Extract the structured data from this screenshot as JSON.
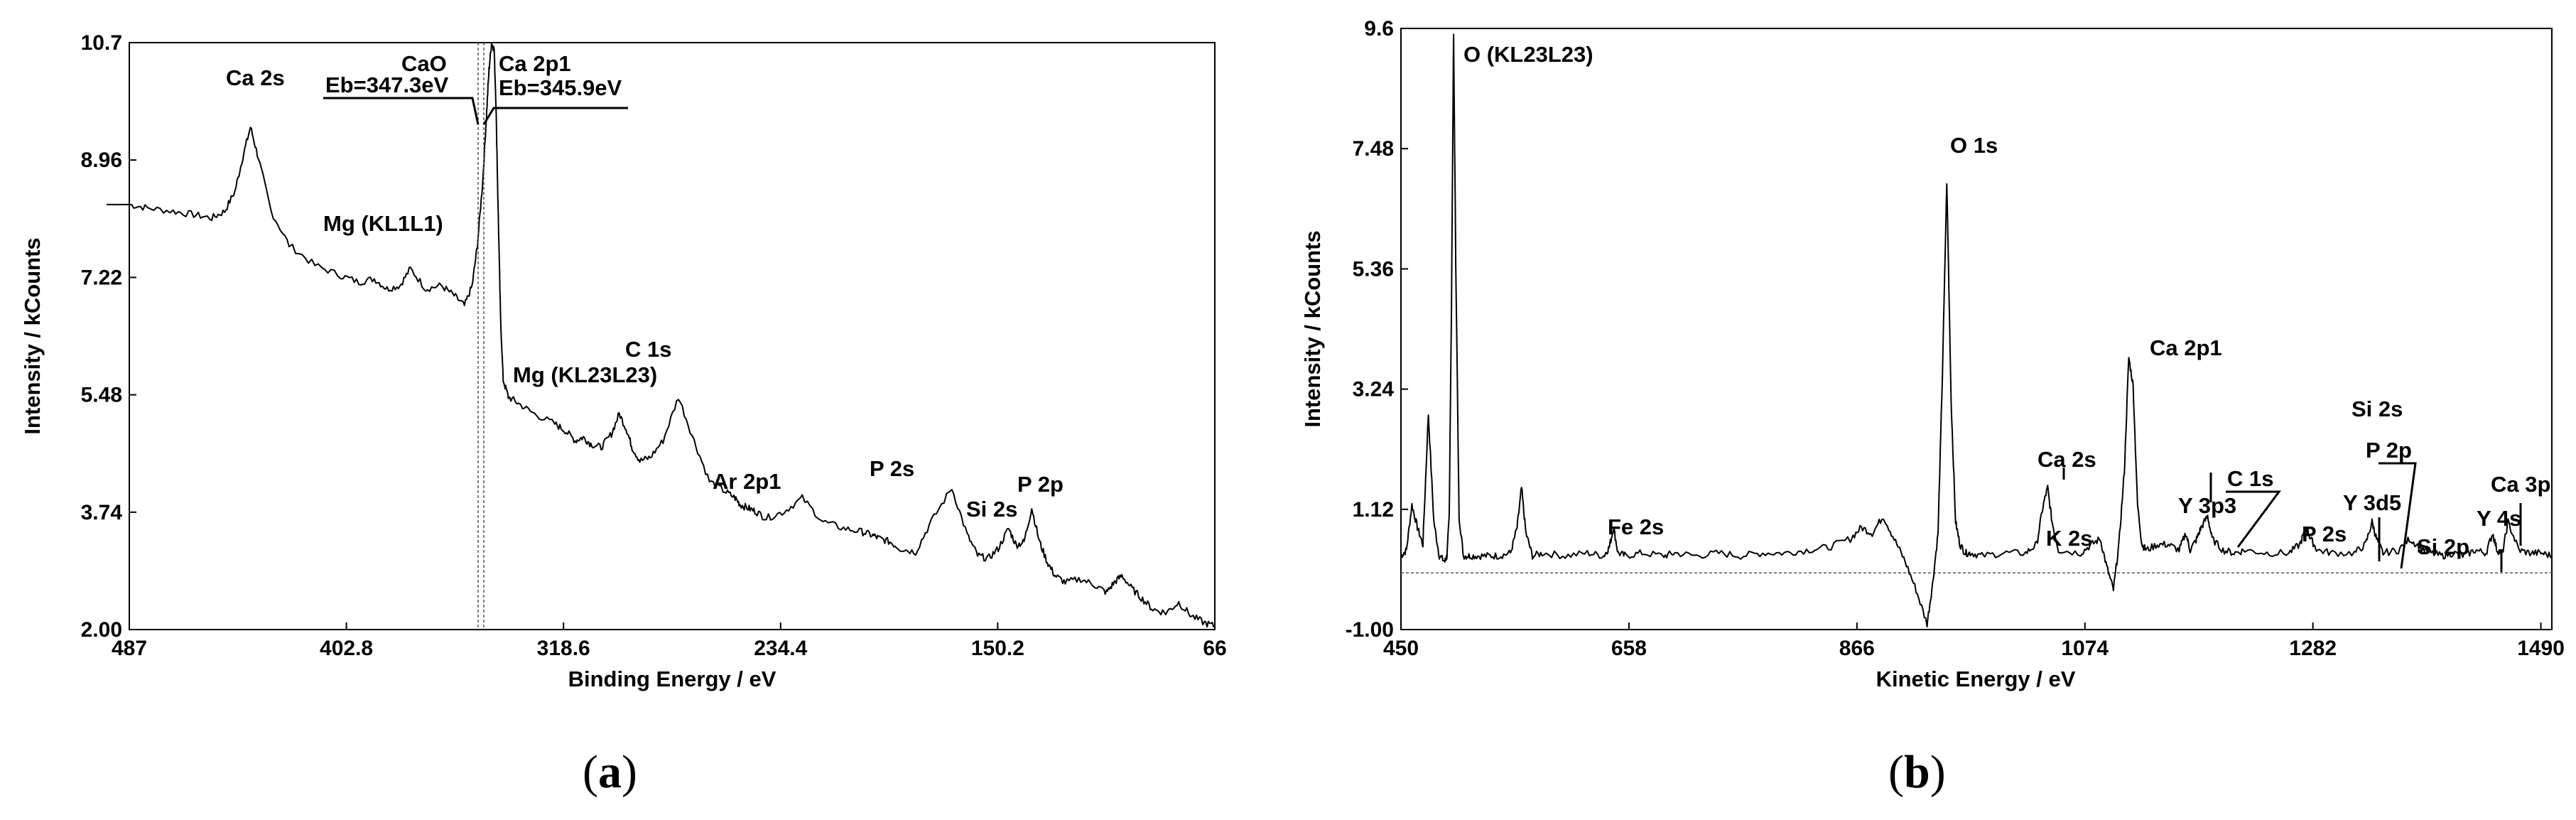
{
  "chart_data": [
    {
      "type": "line",
      "xlabel": "Binding Energy / eV",
      "ylabel": "Intensity / kCounts",
      "x_reversed": true,
      "xlim": [
        487,
        66
      ],
      "ylim": [
        2.0,
        10.7
      ],
      "xticks": [
        "487",
        "402.8",
        "318.6",
        "234.4",
        "150.2",
        "66"
      ],
      "yticks": [
        "2.00",
        "3.74",
        "5.48",
        "7.22",
        "8.96",
        "10.7"
      ],
      "series": [
        {
          "x": [
            487,
            480,
            470,
            462,
            455,
            450,
            446,
            443,
            440,
            437,
            432,
            425,
            415,
            405,
            398,
            392,
            387,
            382,
            378,
            372,
            366,
            361,
            357,
            354,
            352,
            350,
            348.5,
            347.5,
            346.5,
            345.5,
            344.8,
            344,
            343,
            342,
            340,
            336,
            330,
            322,
            318,
            314,
            311,
            308,
            304,
            300,
            297,
            294,
            292,
            289,
            285,
            280,
            274,
            268,
            262,
            256,
            252,
            250,
            247,
            244,
            240,
            233,
            226,
            218,
            210,
            203,
            199,
            196,
            192,
            188,
            182,
            176,
            168,
            162,
            158,
            154,
            150,
            146,
            143,
            140,
            137,
            134,
            131,
            128,
            124,
            118,
            112,
            108,
            105,
            102,
            98,
            94,
            90,
            85,
            80,
            75,
            70,
            66
          ],
          "y": [
            8.3,
            8.25,
            8.2,
            8.15,
            8.1,
            8.2,
            8.5,
            9.0,
            9.45,
            9.0,
            8.2,
            7.7,
            7.4,
            7.25,
            7.15,
            7.2,
            7.05,
            7.1,
            7.35,
            7.05,
            7.1,
            6.95,
            6.8,
            7.1,
            7.7,
            8.6,
            9.6,
            10.3,
            10.7,
            10.6,
            9.8,
            8.3,
            6.6,
            5.7,
            5.45,
            5.35,
            5.2,
            5.05,
            4.95,
            4.8,
            4.85,
            4.75,
            4.7,
            4.9,
            5.2,
            4.95,
            4.7,
            4.5,
            4.55,
            4.8,
            5.45,
            4.8,
            4.2,
            4.05,
            3.95,
            3.85,
            3.8,
            3.75,
            3.65,
            3.75,
            3.95,
            3.6,
            3.5,
            3.45,
            3.4,
            3.35,
            3.3,
            3.2,
            3.15,
            3.6,
            4.1,
            3.4,
            3.1,
            3.05,
            3.2,
            3.5,
            3.25,
            3.3,
            3.8,
            3.3,
            3.0,
            2.8,
            2.7,
            2.75,
            2.65,
            2.55,
            2.7,
            2.8,
            2.6,
            2.45,
            2.3,
            2.25,
            2.4,
            2.2,
            2.1,
            2.05
          ]
        }
      ],
      "annotations": {
        "ca2s": "Ca 2s",
        "mg_kl1l1": "Mg (KL1L1)",
        "cao": "CaO",
        "cao_eb": "Eb=347.3eV",
        "ca2p1": "Ca 2p1",
        "ca2p1_eb": "Eb=345.9eV",
        "mg_kl23l23": "Mg (KL23L23)",
        "c1s": "C 1s",
        "ar2p1": "Ar 2p1",
        "p2s": "P 2s",
        "si2s": "Si 2s",
        "p2p": "P 2p"
      },
      "panel_label": "a"
    },
    {
      "type": "line",
      "xlabel": "Kinetic Energy / eV",
      "ylabel": "Intensity / kCounts",
      "xlim": [
        450,
        1500
      ],
      "ylim": [
        -1.0,
        9.6
      ],
      "xtick_values": [
        450,
        658,
        866,
        1074,
        1282,
        1490
      ],
      "xticks": [
        "450",
        "658",
        "866",
        "1074",
        "1282",
        "1490"
      ],
      "yticks": [
        "-1.00",
        "1.12",
        "3.24",
        "5.36",
        "7.48",
        "9.6"
      ],
      "baseline": 0.0,
      "series": [
        {
          "x": [
            450,
            455,
            460,
            465,
            470,
            475,
            480,
            485,
            490,
            492,
            494,
            496,
            498,
            500,
            503,
            507,
            512,
            520,
            530,
            540,
            550,
            556,
            560,
            564,
            570,
            580,
            600,
            620,
            635,
            640,
            644,
            648,
            655,
            670,
            690,
            700,
            720,
            740,
            760,
            780,
            800,
            820,
            840,
            860,
            870,
            880,
            890,
            900,
            910,
            920,
            930,
            935,
            940,
            944,
            948,
            952,
            956,
            960,
            965,
            970,
            980,
            1000,
            1020,
            1030,
            1036,
            1040,
            1044,
            1050,
            1070,
            1080,
            1088,
            1094,
            1100,
            1105,
            1110,
            1114,
            1118,
            1122,
            1126,
            1130,
            1140,
            1150,
            1160,
            1166,
            1170,
            1176,
            1180,
            1186,
            1190,
            1200,
            1210,
            1220,
            1240,
            1260,
            1270,
            1276,
            1280,
            1286,
            1300,
            1320,
            1330,
            1336,
            1340,
            1346,
            1360,
            1370,
            1380,
            1390,
            1400,
            1410,
            1420,
            1430,
            1440,
            1446,
            1450,
            1455,
            1460,
            1470,
            1480,
            1490,
            1500
          ],
          "y": [
            0.3,
            0.4,
            1.2,
            0.8,
            0.5,
            2.8,
            0.9,
            0.3,
            0.2,
            0.3,
            1.0,
            4.5,
            9.5,
            5.5,
            1.0,
            0.3,
            0.3,
            0.3,
            0.3,
            0.3,
            0.35,
            0.8,
            1.5,
            0.7,
            0.3,
            0.35,
            0.3,
            0.35,
            0.3,
            0.45,
            0.8,
            0.35,
            0.3,
            0.35,
            0.3,
            0.35,
            0.3,
            0.35,
            0.3,
            0.35,
            0.35,
            0.4,
            0.45,
            0.6,
            0.8,
            0.7,
            1.0,
            0.6,
            0.2,
            -0.3,
            -0.9,
            -0.2,
            0.7,
            3.5,
            6.9,
            3.0,
            0.9,
            0.5,
            0.35,
            0.35,
            0.3,
            0.35,
            0.35,
            0.5,
            1.2,
            1.5,
            0.9,
            0.4,
            0.35,
            0.5,
            0.6,
            0.1,
            -0.3,
            0.5,
            1.8,
            3.8,
            3.3,
            1.2,
            0.5,
            0.4,
            0.5,
            0.5,
            0.4,
            0.7,
            0.4,
            0.6,
            0.8,
            1.0,
            0.6,
            0.4,
            0.35,
            0.4,
            0.35,
            0.35,
            0.5,
            0.8,
            0.6,
            0.4,
            0.35,
            0.35,
            0.5,
            0.9,
            0.6,
            0.35,
            0.4,
            0.6,
            0.45,
            0.35,
            0.3,
            0.35,
            0.3,
            0.4,
            0.35,
            0.7,
            0.4,
            0.35,
            0.9,
            0.4,
            0.35,
            0.35,
            0.3
          ]
        }
      ],
      "annotations": {
        "o_kll": "O (KL23L23)",
        "o1s": "O 1s",
        "fe2s": "Fe 2s",
        "ca2s": "Ca 2s",
        "k2s": "K 2s",
        "ca2p1": "Ca 2p1",
        "y3p3": "Y 3p3",
        "c1s": "C 1s",
        "p2s": "P 2s",
        "si2s": "Si 2s",
        "p2p": "P 2p",
        "y3d5": "Y 3d5",
        "si2p": "Si 2p",
        "y4s": "Y 4s",
        "ca3p": "Ca 3p"
      },
      "panel_label": "b"
    }
  ]
}
